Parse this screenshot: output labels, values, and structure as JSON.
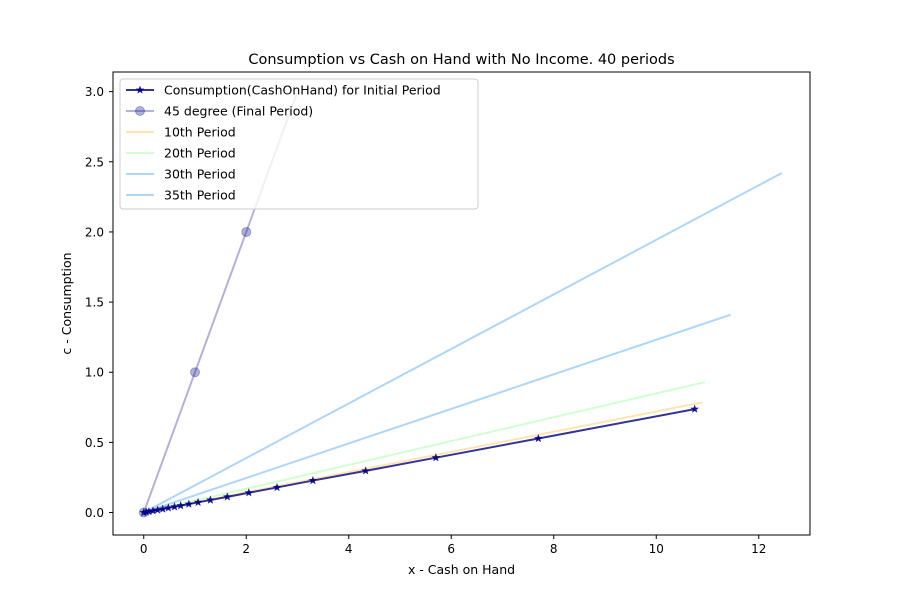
{
  "chart_data": {
    "type": "line",
    "title": "Consumption vs Cash on Hand with No Income. 40 periods",
    "xlabel": "x - Cash on Hand",
    "ylabel": "c - Consumption",
    "xlim": [
      -0.6,
      13.0
    ],
    "ylim": [
      -0.16,
      3.14
    ],
    "xticks": [
      0,
      2,
      4,
      6,
      8,
      10,
      12
    ],
    "yticks": [
      0.0,
      0.5,
      1.0,
      1.5,
      2.0,
      2.5,
      3.0
    ],
    "xtick_labels": [
      "0",
      "2",
      "4",
      "6",
      "8",
      "10",
      "12"
    ],
    "ytick_labels": [
      "0.0",
      "0.5",
      "1.0",
      "1.5",
      "2.0",
      "2.5",
      "3.0"
    ],
    "grid": false,
    "legend_position": "top-left",
    "series": [
      {
        "name": "Consumption(CashOnHand) for Initial Period",
        "color": "#000080",
        "alpha": 0.8,
        "marker": "star",
        "x": [
          0.0,
          0.05,
          0.1,
          0.18,
          0.27,
          0.37,
          0.48,
          0.6,
          0.72,
          0.88,
          1.06,
          1.3,
          1.63,
          2.05,
          2.6,
          3.3,
          4.33,
          5.7,
          7.7,
          10.75
        ],
        "y": [
          0.0,
          0.003,
          0.007,
          0.012,
          0.018,
          0.025,
          0.033,
          0.041,
          0.049,
          0.06,
          0.073,
          0.089,
          0.112,
          0.141,
          0.179,
          0.228,
          0.297,
          0.391,
          0.528,
          0.737
        ]
      },
      {
        "name": "45 degree (Final Period)",
        "color": "#000080",
        "alpha": 0.3,
        "marker": "circle",
        "x": [
          0.0,
          1.0,
          2.0,
          3.0
        ],
        "y": [
          0.0,
          1.0,
          2.0,
          3.0
        ],
        "marker_x": [
          0.0,
          1.0,
          2.0
        ]
      },
      {
        "name": "10th Period",
        "color": "#ffa500",
        "alpha": 0.3,
        "x": [
          0.0,
          10.9
        ],
        "y": [
          0.0,
          0.785
        ]
      },
      {
        "name": "20th Period",
        "color": "#66ff66",
        "alpha": 0.3,
        "x": [
          0.0,
          10.95
        ],
        "y": [
          0.0,
          0.93
        ]
      },
      {
        "name": "30th Period",
        "color": "#3399ee",
        "alpha": 0.4,
        "x": [
          0.0,
          11.45
        ],
        "y": [
          0.0,
          1.41
        ]
      },
      {
        "name": "35th Period",
        "color": "#3399ee",
        "alpha": 0.4,
        "x": [
          0.0,
          12.45
        ],
        "y": [
          0.0,
          2.42
        ]
      }
    ]
  }
}
